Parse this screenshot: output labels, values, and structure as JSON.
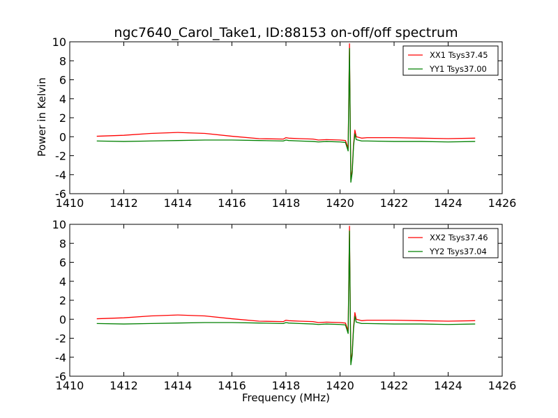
{
  "figure": {
    "title": "ngc7640_Carol_Take1, ID:88153 on-off/off spectrum",
    "xlabel": "Frequency (MHz)",
    "ylabel": "Power in Kelvin"
  },
  "chart_data": [
    {
      "type": "line",
      "title": "ngc7640_Carol_Take1, ID:88153 on-off/off spectrum",
      "xlabel": "",
      "ylabel": "Power in Kelvin",
      "xlim": [
        1410,
        1426
      ],
      "ylim": [
        -6,
        10
      ],
      "xticks": [
        1410,
        1412,
        1414,
        1416,
        1418,
        1420,
        1422,
        1424,
        1426
      ],
      "yticks": [
        -6,
        -4,
        -2,
        0,
        2,
        4,
        6,
        8,
        10
      ],
      "grid": false,
      "legend": "top-right",
      "series": [
        {
          "name": "XX1 Tsys37.45",
          "color": "#ff0000",
          "x": [
            1411.0,
            1412.0,
            1413.0,
            1414.0,
            1415.0,
            1416.0,
            1417.0,
            1417.9,
            1418.0,
            1418.1,
            1418.5,
            1419.0,
            1419.2,
            1419.5,
            1420.0,
            1420.2,
            1420.3,
            1420.35,
            1420.4,
            1420.45,
            1420.5,
            1420.55,
            1420.6,
            1420.8,
            1421.0,
            1422.0,
            1423.0,
            1424.0,
            1425.0
          ],
          "y": [
            0.05,
            0.15,
            0.35,
            0.45,
            0.35,
            0.05,
            -0.2,
            -0.25,
            -0.1,
            -0.15,
            -0.2,
            -0.25,
            -0.35,
            -0.3,
            -0.35,
            -0.4,
            -1.2,
            9.8,
            -4.5,
            -3.5,
            -0.8,
            0.7,
            0.0,
            -0.15,
            -0.1,
            -0.1,
            -0.15,
            -0.2,
            -0.15
          ]
        },
        {
          "name": "YY1 Tsys37.00",
          "color": "#008000",
          "x": [
            1411.0,
            1412.0,
            1413.0,
            1414.0,
            1415.0,
            1416.0,
            1417.0,
            1417.9,
            1418.0,
            1418.1,
            1418.5,
            1419.0,
            1419.2,
            1419.5,
            1420.0,
            1420.2,
            1420.3,
            1420.35,
            1420.4,
            1420.45,
            1420.5,
            1420.55,
            1420.6,
            1420.8,
            1421.0,
            1422.0,
            1423.0,
            1424.0,
            1425.0
          ],
          "y": [
            -0.45,
            -0.5,
            -0.45,
            -0.4,
            -0.35,
            -0.35,
            -0.4,
            -0.45,
            -0.35,
            -0.4,
            -0.45,
            -0.5,
            -0.55,
            -0.5,
            -0.55,
            -0.6,
            -1.5,
            9.3,
            -4.8,
            -3.8,
            -1.0,
            0.3,
            -0.3,
            -0.45,
            -0.45,
            -0.5,
            -0.5,
            -0.55,
            -0.5
          ]
        }
      ]
    },
    {
      "type": "line",
      "title": "",
      "xlabel": "Frequency (MHz)",
      "ylabel": "",
      "xlim": [
        1410,
        1426
      ],
      "ylim": [
        -6,
        10
      ],
      "xticks": [
        1410,
        1412,
        1414,
        1416,
        1418,
        1420,
        1422,
        1424,
        1426
      ],
      "yticks": [
        -6,
        -4,
        -2,
        0,
        2,
        4,
        6,
        8,
        10
      ],
      "grid": false,
      "legend": "top-right",
      "series": [
        {
          "name": "XX2 Tsys37.46",
          "color": "#ff0000",
          "x": [
            1411.0,
            1412.0,
            1413.0,
            1414.0,
            1415.0,
            1416.0,
            1417.0,
            1417.9,
            1418.0,
            1418.1,
            1418.5,
            1419.0,
            1419.2,
            1419.5,
            1420.0,
            1420.2,
            1420.3,
            1420.35,
            1420.4,
            1420.45,
            1420.5,
            1420.55,
            1420.6,
            1420.8,
            1421.0,
            1422.0,
            1423.0,
            1424.0,
            1425.0
          ],
          "y": [
            0.05,
            0.15,
            0.35,
            0.45,
            0.35,
            0.05,
            -0.2,
            -0.25,
            -0.1,
            -0.15,
            -0.2,
            -0.25,
            -0.35,
            -0.3,
            -0.35,
            -0.4,
            -1.2,
            9.8,
            -4.5,
            -3.5,
            -0.8,
            0.7,
            0.0,
            -0.15,
            -0.1,
            -0.1,
            -0.15,
            -0.2,
            -0.15
          ]
        },
        {
          "name": "YY2 Tsys37.04",
          "color": "#008000",
          "x": [
            1411.0,
            1412.0,
            1413.0,
            1414.0,
            1415.0,
            1416.0,
            1417.0,
            1417.9,
            1418.0,
            1418.1,
            1418.5,
            1419.0,
            1419.2,
            1419.5,
            1420.0,
            1420.2,
            1420.3,
            1420.35,
            1420.4,
            1420.45,
            1420.5,
            1420.55,
            1420.6,
            1420.8,
            1421.0,
            1422.0,
            1423.0,
            1424.0,
            1425.0
          ],
          "y": [
            -0.45,
            -0.5,
            -0.45,
            -0.4,
            -0.35,
            -0.35,
            -0.4,
            -0.45,
            -0.35,
            -0.4,
            -0.45,
            -0.5,
            -0.55,
            -0.5,
            -0.55,
            -0.6,
            -1.5,
            9.3,
            -4.8,
            -3.8,
            -1.0,
            0.3,
            -0.3,
            -0.45,
            -0.45,
            -0.5,
            -0.5,
            -0.55,
            -0.5
          ]
        }
      ]
    }
  ]
}
